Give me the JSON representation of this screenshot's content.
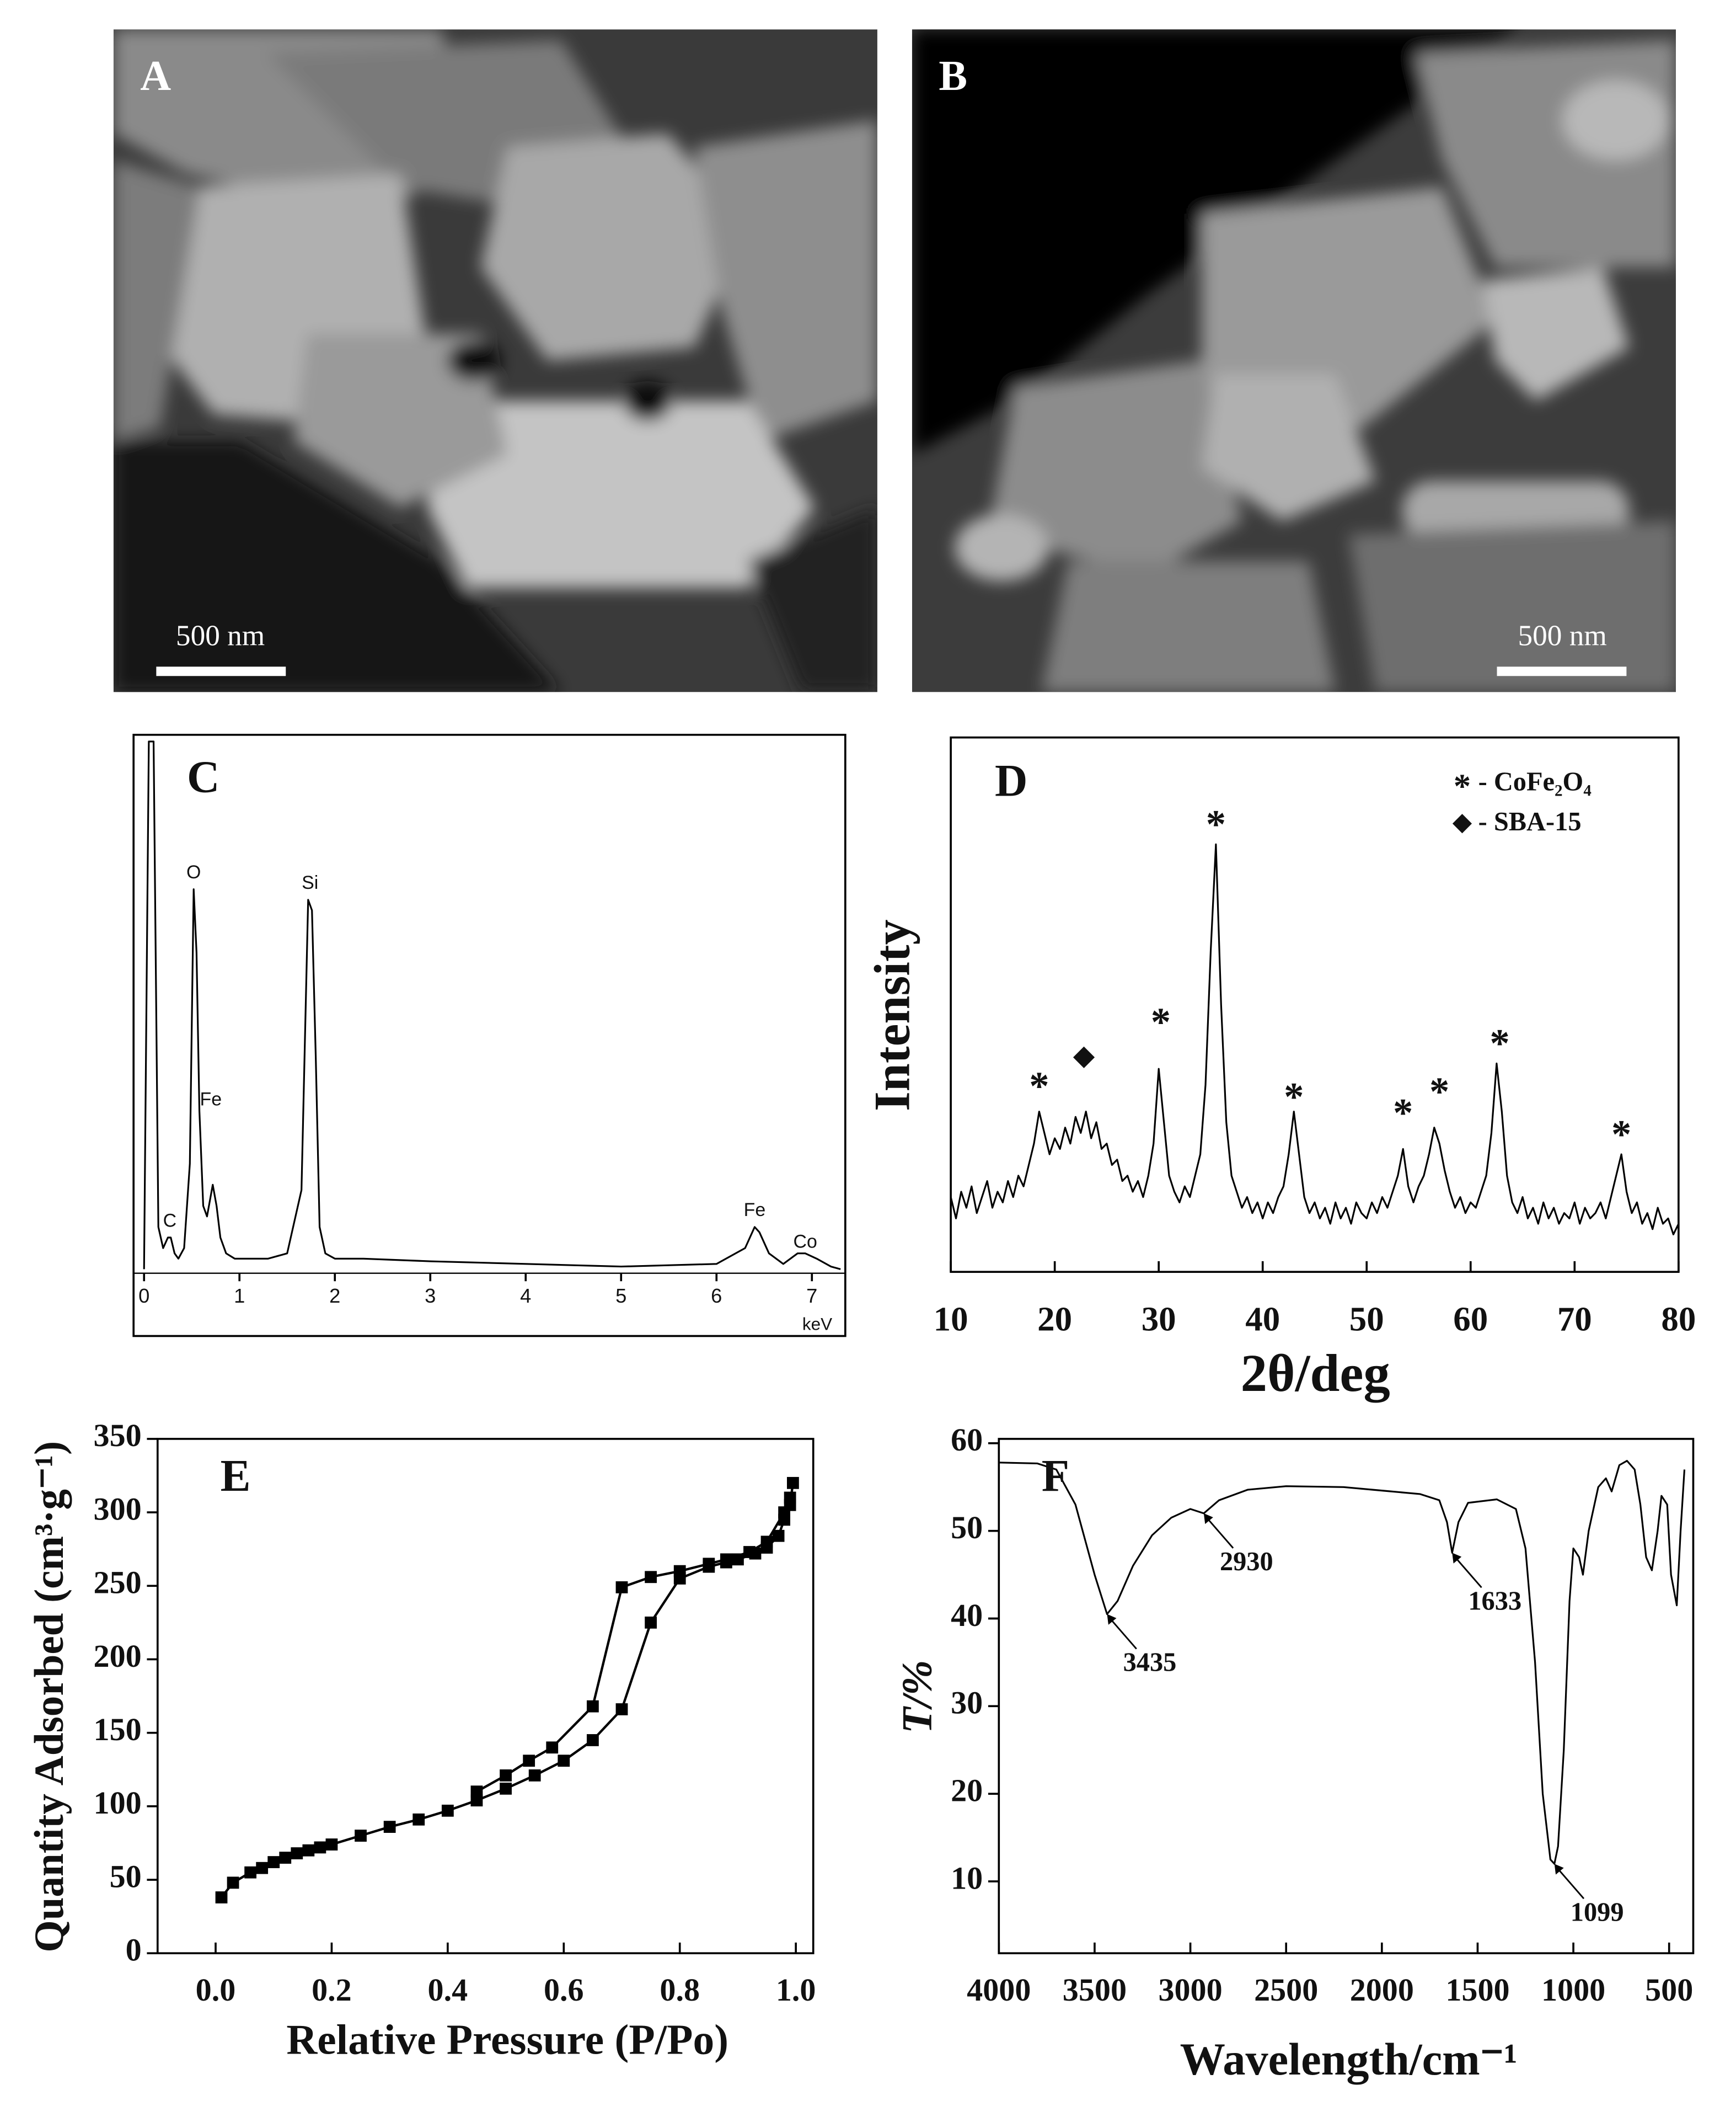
{
  "images": [
    {
      "label": "A",
      "scale_bar": "500 nm"
    },
    {
      "label": "B",
      "scale_bar": "500 nm"
    }
  ],
  "chart_data": [
    {
      "type": "line",
      "label": "C",
      "xlabel": "keV",
      "color": "#000000",
      "x": [
        0,
        0.05,
        0.1,
        0.15,
        0.2,
        0.25,
        0.28,
        0.32,
        0.36,
        0.42,
        0.48,
        0.52,
        0.55,
        0.58,
        0.62,
        0.66,
        0.72,
        0.76,
        0.8,
        0.86,
        0.95,
        1.1,
        1.3,
        1.5,
        1.65,
        1.72,
        1.76,
        1.8,
        1.84,
        1.9,
        2.0,
        2.3,
        3,
        4,
        5,
        6,
        6.3,
        6.4,
        6.45,
        6.55,
        6.7,
        6.85,
        6.93,
        7.05,
        7.2,
        7.3
      ],
      "values": [
        0,
        100,
        100,
        8,
        4,
        6,
        6,
        3,
        2,
        4,
        20,
        72,
        60,
        30,
        12,
        10,
        16,
        12,
        6,
        3,
        2,
        2,
        2,
        3,
        15,
        70,
        68,
        40,
        8,
        3,
        2,
        2,
        1.5,
        1,
        0.5,
        1,
        4,
        8,
        7,
        3,
        1,
        3,
        3,
        2,
        0.5,
        0
      ],
      "xlim": [
        -0.11,
        7.35
      ],
      "ylim": [
        0,
        100
      ],
      "xticks": [
        0,
        1,
        2,
        3,
        4,
        5,
        6,
        7
      ],
      "annotations": [
        {
          "text": "O",
          "x": 0.52,
          "y": 75
        },
        {
          "text": "Si",
          "x": 1.74,
          "y": 73
        },
        {
          "text": "Fe",
          "x": 0.7,
          "y": 32
        },
        {
          "text": "C",
          "x": 0.27,
          "y": 9
        },
        {
          "text": "Fe",
          "x": 6.4,
          "y": 11
        },
        {
          "text": "Co",
          "x": 6.93,
          "y": 5
        }
      ]
    },
    {
      "type": "line",
      "label": "D",
      "xlabel": "2θ/deg",
      "ylabel": "Intensity",
      "color": "#000000",
      "x": [
        10,
        10.5,
        11,
        11.5,
        12,
        12.5,
        13,
        13.5,
        14,
        14.5,
        15,
        15.5,
        16,
        16.5,
        17,
        17.5,
        18,
        18.5,
        19,
        19.5,
        20,
        20.5,
        21,
        21.5,
        22,
        22.5,
        23,
        23.5,
        24,
        24.5,
        25,
        25.5,
        26,
        26.5,
        27,
        27.5,
        28,
        28.5,
        29,
        29.5,
        30,
        30.5,
        31,
        31.5,
        32,
        32.5,
        33,
        33.5,
        34,
        34.5,
        35,
        35.5,
        36,
        36.5,
        37,
        37.5,
        38,
        38.5,
        39,
        39.5,
        40,
        40.5,
        41,
        41.5,
        42,
        42.5,
        43,
        43.5,
        44,
        44.5,
        45,
        45.5,
        46,
        46.5,
        47,
        47.5,
        48,
        48.5,
        49,
        49.5,
        50,
        50.5,
        51,
        51.5,
        52,
        52.5,
        53,
        53.5,
        54,
        54.5,
        55,
        55.5,
        56,
        56.5,
        57,
        57.5,
        58,
        58.5,
        59,
        59.5,
        60,
        60.5,
        61,
        61.5,
        62,
        62.5,
        63,
        63.5,
        64,
        64.5,
        65,
        65.5,
        66,
        66.5,
        67,
        67.5,
        68,
        68.5,
        69,
        69.5,
        70,
        70.5,
        71,
        71.5,
        72,
        72.5,
        73,
        73.5,
        74,
        74.5,
        75,
        75.5,
        76,
        76.5,
        77,
        77.5,
        78,
        78.5,
        79,
        79.5,
        80
      ],
      "values": [
        14,
        10,
        15,
        12,
        16,
        11,
        14,
        17,
        12,
        15,
        13,
        17,
        14,
        18,
        16,
        20,
        24,
        30,
        26,
        22,
        25,
        23,
        27,
        24,
        29,
        26,
        30,
        25,
        28,
        23,
        24,
        20,
        21,
        17,
        18,
        15,
        17,
        14,
        18,
        24,
        38,
        28,
        18,
        15,
        13,
        16,
        14,
        18,
        22,
        35,
        60,
        80,
        50,
        28,
        18,
        15,
        12,
        14,
        11,
        13,
        10,
        13,
        11,
        14,
        16,
        22,
        30,
        22,
        14,
        11,
        13,
        10,
        12,
        9,
        13,
        10,
        12,
        9,
        13,
        11,
        10,
        13,
        11,
        14,
        12,
        15,
        18,
        23,
        16,
        13,
        16,
        18,
        22,
        27,
        24,
        19,
        15,
        12,
        14,
        11,
        13,
        12,
        15,
        18,
        26,
        39,
        30,
        18,
        13,
        11,
        14,
        10,
        12,
        9,
        13,
        10,
        12,
        9,
        11,
        10,
        13,
        9,
        12,
        10,
        11,
        13,
        10,
        14,
        18,
        22,
        15,
        11,
        13,
        9,
        11,
        8,
        12,
        9,
        10,
        7,
        9
      ],
      "xlim": [
        10,
        80
      ],
      "ylim": [
        0,
        100
      ],
      "xticks": [
        10,
        20,
        30,
        40,
        50,
        60,
        70,
        80
      ],
      "markers": [
        {
          "symbol": "*",
          "x": 18.5,
          "y": 34
        },
        {
          "symbol": "◆",
          "x": 22.8,
          "y": 40
        },
        {
          "symbol": "*",
          "x": 30.2,
          "y": 46
        },
        {
          "symbol": "*",
          "x": 35.5,
          "y": 83
        },
        {
          "symbol": "*",
          "x": 43,
          "y": 32
        },
        {
          "symbol": "*",
          "x": 53.5,
          "y": 29
        },
        {
          "symbol": "*",
          "x": 57,
          "y": 33
        },
        {
          "symbol": "*",
          "x": 62.8,
          "y": 42
        },
        {
          "symbol": "*",
          "x": 74.5,
          "y": 25
        }
      ],
      "legend": [
        {
          "symbol": "*",
          "text": "- CoFe₂O₄"
        },
        {
          "symbol": "◆",
          "text": "- SBA-15"
        }
      ],
      "legend_position": "upper right"
    },
    {
      "type": "line",
      "label": "E",
      "xlabel": "Relative Pressure (P/Po)",
      "ylabel": "Quantity Adsorbed (cm³·g⁻¹)",
      "marker": "square",
      "series": [
        {
          "color": "#000000",
          "x": [
            0.01,
            0.03,
            0.06,
            0.08,
            0.1,
            0.12,
            0.14,
            0.16,
            0.18,
            0.2,
            0.25,
            0.3,
            0.35,
            0.4,
            0.45,
            0.5,
            0.55,
            0.6,
            0.65,
            0.7,
            0.75,
            0.8,
            0.85,
            0.88,
            0.9,
            0.93,
            0.95,
            0.97,
            0.98,
            0.99,
            0.995
          ],
          "values": [
            38,
            48,
            55,
            58,
            62,
            65,
            68,
            70,
            72,
            74,
            80,
            86,
            91,
            97,
            104,
            112,
            121,
            131,
            145,
            166,
            225,
            255,
            263,
            266,
            268,
            272,
            276,
            284,
            295,
            305,
            320
          ]
        },
        {
          "color": "#000000",
          "x": [
            0.99,
            0.98,
            0.95,
            0.92,
            0.88,
            0.85,
            0.8,
            0.75,
            0.7,
            0.65,
            0.58,
            0.54,
            0.5,
            0.45
          ],
          "values": [
            310,
            300,
            280,
            273,
            268,
            265,
            260,
            256,
            249,
            168,
            140,
            131,
            121,
            110
          ]
        }
      ],
      "xlim": [
        -0.1,
        1.03
      ],
      "ylim": [
        0,
        350
      ],
      "xticks": [
        {
          "value": 0,
          "label": "0.0"
        },
        0.2,
        0.4,
        0.6,
        0.8,
        {
          "value": 1,
          "label": "1.0"
        }
      ],
      "yticks": [
        0,
        50,
        100,
        150,
        200,
        250,
        300,
        350
      ]
    },
    {
      "type": "line",
      "label": "F",
      "xlabel": "Wavelength/cm⁻¹",
      "ylabel": "T/%",
      "color": "#000000",
      "x": [
        4000,
        3800,
        3700,
        3600,
        3500,
        3435,
        3380,
        3300,
        3200,
        3100,
        3000,
        2930,
        2850,
        2700,
        2500,
        2200,
        2000,
        1800,
        1700,
        1660,
        1633,
        1600,
        1550,
        1400,
        1300,
        1250,
        1200,
        1160,
        1120,
        1099,
        1080,
        1050,
        1020,
        1000,
        970,
        950,
        920,
        870,
        830,
        800,
        760,
        720,
        680,
        650,
        620,
        590,
        560,
        540,
        510,
        490,
        460,
        440,
        420
      ],
      "values": [
        57.8,
        57.7,
        57,
        53,
        45,
        40.5,
        42,
        46,
        49.5,
        51.5,
        52.5,
        52,
        53.5,
        54.7,
        55.1,
        55,
        54.6,
        54.2,
        53.5,
        51,
        47.5,
        51,
        53.2,
        53.6,
        52.5,
        48,
        35,
        20,
        12.5,
        12,
        14,
        25,
        42,
        48,
        47,
        45,
        50,
        55,
        56,
        54.5,
        57.5,
        58,
        57,
        53,
        47,
        45.5,
        50,
        54,
        53,
        45,
        41.5,
        50,
        57
      ],
      "xlim": [
        4000,
        374
      ],
      "ylim": [
        1.8,
        60.5
      ],
      "xticks": [
        4000,
        3500,
        3000,
        2500,
        2000,
        1500,
        1000,
        500
      ],
      "yticks": [
        10,
        20,
        30,
        40,
        50,
        60
      ],
      "annotations": [
        {
          "text": "3435",
          "x": 3435,
          "y": 40.5
        },
        {
          "text": "2930",
          "x": 2930,
          "y": 52
        },
        {
          "text": "1633",
          "x": 1633,
          "y": 47.5
        },
        {
          "text": "1099",
          "x": 1099,
          "y": 12
        }
      ]
    }
  ]
}
